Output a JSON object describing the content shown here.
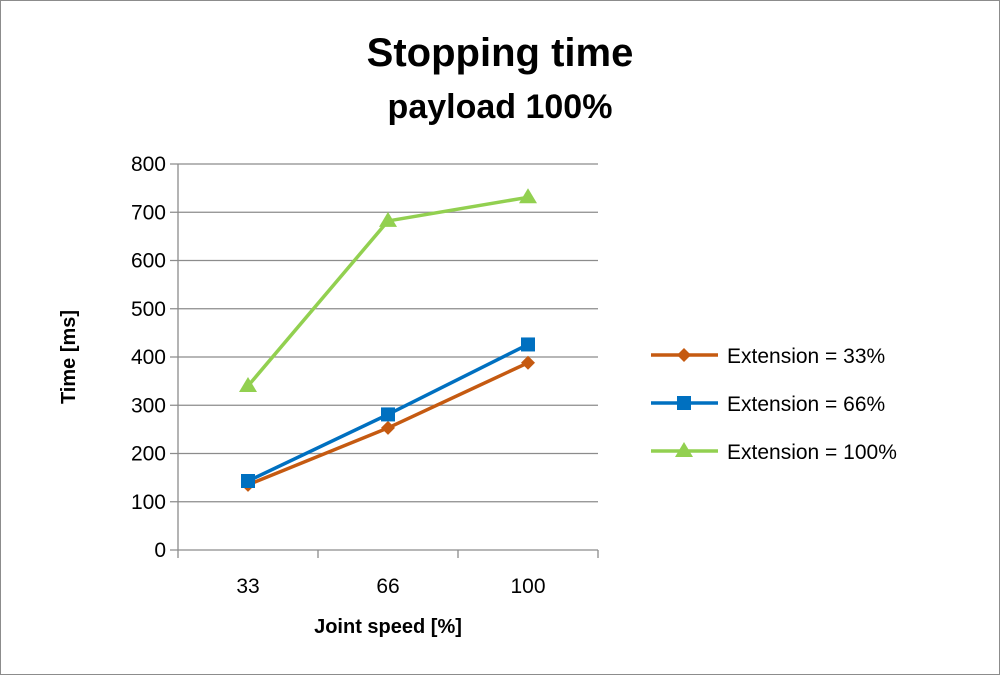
{
  "chart_data": {
    "type": "line",
    "title": "Stopping time",
    "subtitle": "payload 100%",
    "xlabel": "Joint speed [%]",
    "ylabel": "Time [ms]",
    "categories": [
      "33",
      "66",
      "100"
    ],
    "ylim": [
      0,
      800
    ],
    "yticks": [
      "0",
      "100",
      "200",
      "300",
      "400",
      "500",
      "600",
      "700",
      "800"
    ],
    "grid": true,
    "legend_position": "right",
    "series": [
      {
        "name": "Extension = 33%",
        "values": [
          135,
          253,
          388
        ],
        "color": "#C55A11",
        "marker": "diamond"
      },
      {
        "name": "Extension = 66%",
        "values": [
          143,
          281,
          426
        ],
        "color": "#0070C0",
        "marker": "square"
      },
      {
        "name": "Extension = 100%",
        "values": [
          340,
          682,
          731
        ],
        "color": "#92D050",
        "marker": "triangle"
      }
    ]
  }
}
